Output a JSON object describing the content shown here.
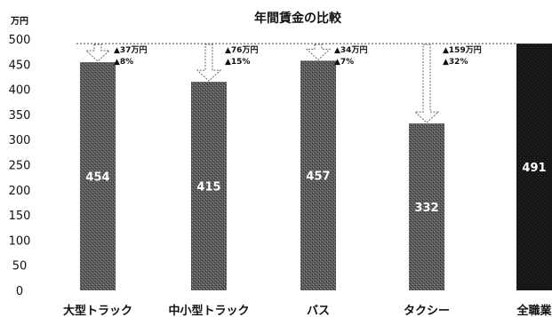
{
  "chart_data": {
    "type": "bar",
    "title": "年間賃金の比較",
    "unit_label": "万円",
    "categories": [
      "大型トラック",
      "中小型トラック",
      "バス",
      "タクシー",
      "全職業"
    ],
    "values": [
      454,
      415,
      457,
      332,
      491
    ],
    "value_labels": [
      "454",
      "415",
      "457",
      "332",
      "491"
    ],
    "gap_labels": [
      [
        "▲37万円",
        "▲8%"
      ],
      [
        "▲76万円",
        "▲15%"
      ],
      [
        "▲34万円",
        "▲7%"
      ],
      [
        "▲159万円",
        "▲32%"
      ],
      null
    ],
    "reference_value": 491,
    "ylim": [
      0,
      500
    ],
    "yticks": [
      0,
      50,
      100,
      150,
      200,
      250,
      300,
      350,
      400,
      450,
      500
    ],
    "bar_colors": [
      "#555555",
      "#555555",
      "#555555",
      "#555555",
      "#111111"
    ]
  }
}
